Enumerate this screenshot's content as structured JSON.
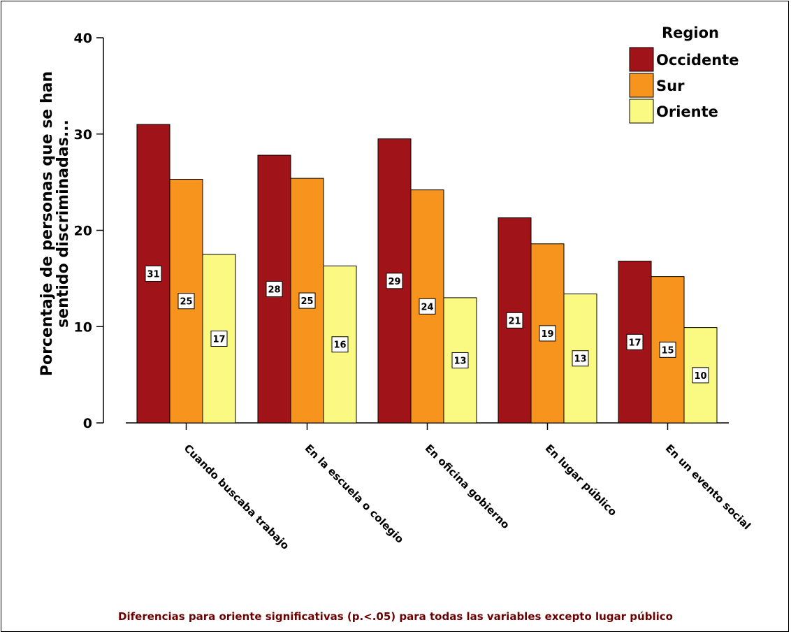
{
  "chart_data": {
    "type": "bar",
    "title": "",
    "ylabel": [
      "Porcentaje de personas que se han",
      "sentido discriminadas..."
    ],
    "xlabel": "",
    "ylim": [
      0,
      40
    ],
    "yticks": [
      0,
      10,
      20,
      30,
      40
    ],
    "categories": [
      "Cuando buscaba trabajo",
      "En la escuela o colegio",
      "En oficina gobierno",
      "En lugar público",
      "En un evento social"
    ],
    "series": [
      {
        "name": "Occidente",
        "color": "#a01419",
        "values": [
          31,
          27.8,
          29.5,
          21.3,
          16.8
        ],
        "labels": [
          "31",
          "28",
          "29",
          "21",
          "17"
        ]
      },
      {
        "name": "Sur",
        "color": "#f7941d",
        "values": [
          25.3,
          25.4,
          24.2,
          18.6,
          15.2
        ],
        "labels": [
          "25",
          "25",
          "24",
          "19",
          "15"
        ]
      },
      {
        "name": "Oriente",
        "color": "#fafa82",
        "values": [
          17.5,
          16.3,
          13,
          13.4,
          9.9
        ],
        "labels": [
          "17",
          "16",
          "13",
          "13",
          "10"
        ]
      }
    ],
    "legend": {
      "title": "Region",
      "position": "top-right"
    },
    "grid": false
  },
  "footnote": "Diferencias para oriente significativas (p.<.05) para todas las variables excepto lugar público"
}
